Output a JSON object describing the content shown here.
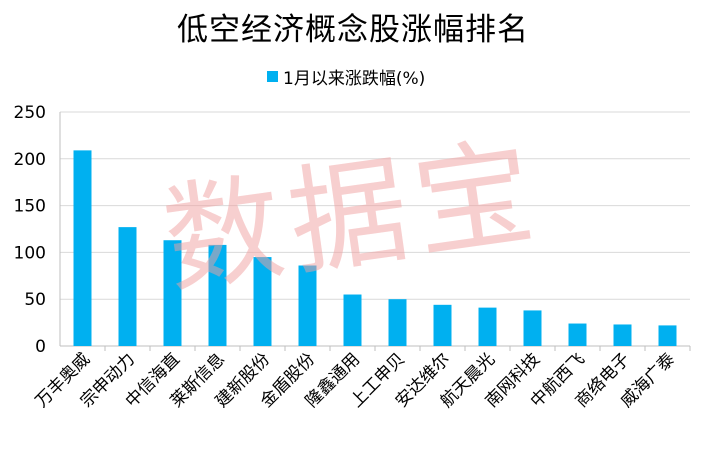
{
  "colors": {
    "bar": "#00b0f0",
    "grid": "#d9d9d9",
    "axis": "#bfbfbf",
    "watermark": "#f1a1a1"
  },
  "watermark_text": "数据宝",
  "chart_data": {
    "type": "bar",
    "title": "低空经济概念股涨幅排名",
    "categories": [
      "万丰奥威",
      "宗申动力",
      "中信海直",
      "莱斯信息",
      "建新股份",
      "金盾股份",
      "隆鑫通用",
      "上工申贝",
      "安达维尔",
      "航天晨光",
      "南网科技",
      "中航西飞",
      "商络电子",
      "威海广泰"
    ],
    "series": [
      {
        "name": "1月以来涨跌幅(%)",
        "values": [
          209,
          127,
          113,
          108,
          95,
          86,
          55,
          50,
          44,
          41,
          38,
          24,
          23,
          22
        ]
      }
    ],
    "ylim": [
      0,
      250
    ],
    "yticks": [
      0,
      50,
      100,
      150,
      200,
      250
    ],
    "grid": true,
    "legend_position": "top"
  }
}
